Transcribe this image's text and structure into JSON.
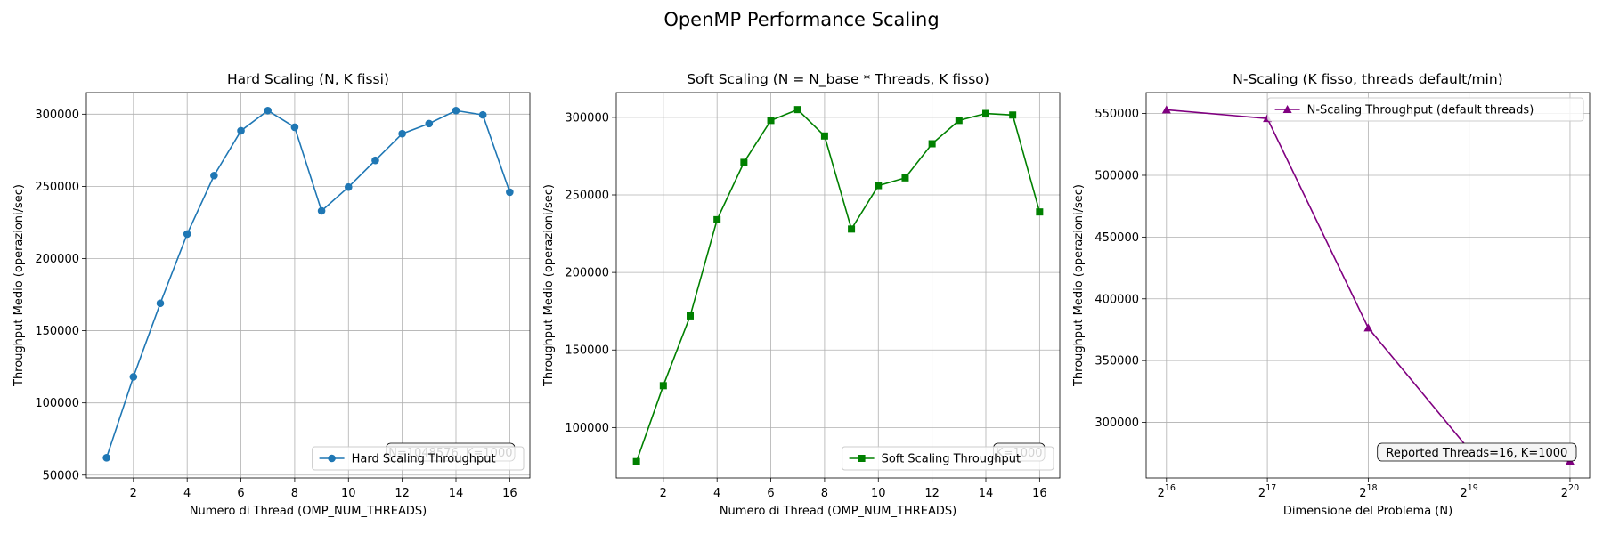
{
  "figure_title": "OpenMP Performance Scaling",
  "colors": {
    "series_1": "#1f77b4",
    "series_2": "#008000",
    "series_3": "#800080",
    "grid": "#b0b0b0"
  },
  "chart_data": [
    {
      "type": "line",
      "title": "Hard Scaling (N, K fissi)",
      "xlabel": "Numero di Thread (OMP_NUM_THREADS)",
      "ylabel": "Throughput Medio (operazioni/sec)",
      "xlim": [
        0.25,
        16.75
      ],
      "ylim": [
        48000,
        315000
      ],
      "xticks": [
        2,
        4,
        6,
        8,
        10,
        12,
        14,
        16
      ],
      "yticks": [
        50000,
        100000,
        150000,
        200000,
        250000,
        300000
      ],
      "grid": true,
      "marker": "circle",
      "legend_location": "lower right",
      "annotation": "N=1048576, K=1000",
      "series": [
        {
          "name": "Hard Scaling Throughput",
          "color": "#1f77b4",
          "x": [
            1,
            2,
            3,
            4,
            5,
            6,
            7,
            8,
            9,
            10,
            11,
            12,
            13,
            14,
            15,
            16
          ],
          "y": [
            62000,
            118000,
            169000,
            217000,
            257500,
            288500,
            302500,
            291000,
            233000,
            249500,
            268000,
            286500,
            293500,
            302500,
            299500,
            246000
          ]
        }
      ]
    },
    {
      "type": "line",
      "title": "Soft Scaling (N = N_base * Threads, K fisso)",
      "xlabel": "Numero di Thread (OMP_NUM_THREADS)",
      "ylabel": "Throughput Medio (operazioni/sec)",
      "xlim": [
        0.25,
        16.75
      ],
      "ylim": [
        67500,
        316000
      ],
      "xticks": [
        2,
        4,
        6,
        8,
        10,
        12,
        14,
        16
      ],
      "yticks": [
        100000,
        150000,
        200000,
        250000,
        300000
      ],
      "grid": true,
      "marker": "square",
      "legend_location": "lower right",
      "annotation": "K=1000",
      "series": [
        {
          "name": "Soft Scaling Throughput",
          "color": "#008000",
          "x": [
            1,
            2,
            3,
            4,
            5,
            6,
            7,
            8,
            9,
            10,
            11,
            12,
            13,
            14,
            15,
            16
          ],
          "y": [
            78000,
            127000,
            172000,
            234000,
            271000,
            298000,
            305000,
            288000,
            228000,
            256000,
            261000,
            283000,
            298000,
            302500,
            301500,
            239000
          ]
        }
      ]
    },
    {
      "type": "line",
      "title": "N-Scaling (K fisso, threads default/min)",
      "xlabel": "Dimensione del Problema (N)",
      "ylabel": "Throughput Medio (operazioni/sec)",
      "xscale": "log2",
      "xlim": [
        57000,
        1200000
      ],
      "ylim": [
        255000,
        567000
      ],
      "xticks": [
        65536,
        131072,
        262144,
        524288,
        1048576
      ],
      "xtick_labels": [
        {
          "base": "2",
          "exp": "16"
        },
        {
          "base": "2",
          "exp": "17"
        },
        {
          "base": "2",
          "exp": "18"
        },
        {
          "base": "2",
          "exp": "19"
        },
        {
          "base": "2",
          "exp": "20"
        }
      ],
      "yticks": [
        300000,
        350000,
        400000,
        450000,
        500000,
        550000
      ],
      "grid": true,
      "marker": "triangle",
      "legend_location": "upper right",
      "annotation": "Reported Threads=16, K=1000",
      "series": [
        {
          "name": "N-Scaling Throughput (default threads)",
          "color": "#800080",
          "x": [
            65536,
            131072,
            262144,
            524288,
            1048576
          ],
          "y": [
            553000,
            546000,
            376500,
            278000,
            268500
          ]
        }
      ]
    }
  ]
}
